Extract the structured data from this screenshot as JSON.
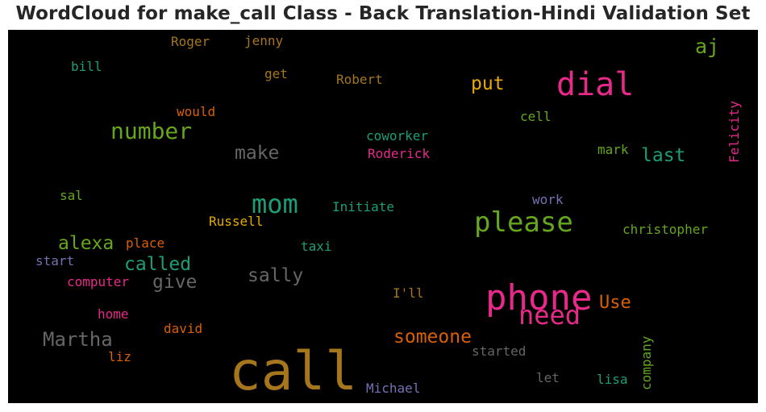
{
  "title": "WordCloud for make_call Class - Back Translation-Hindi Validation Set",
  "chart_data": {
    "type": "wordcloud",
    "title": "WordCloud for make_call Class - Back Translation-Hindi Validation Set",
    "background": "#000000",
    "colormap": "Dark2",
    "words": [
      {
        "text": "call",
        "color": "#a6761d"
      },
      {
        "text": "phone",
        "color": "#e7298a"
      },
      {
        "text": "dial",
        "color": "#e7298a"
      },
      {
        "text": "please",
        "color": "#66a61e"
      },
      {
        "text": "mom",
        "color": "#1b9e77"
      },
      {
        "text": "need",
        "color": "#e7298a"
      },
      {
        "text": "number",
        "color": "#66a61e"
      },
      {
        "text": "Martha",
        "color": "#666666"
      },
      {
        "text": "someone",
        "color": "#d95f02"
      },
      {
        "text": "alexa",
        "color": "#66a61e"
      },
      {
        "text": "called",
        "color": "#1b9e77"
      },
      {
        "text": "make",
        "color": "#666666"
      },
      {
        "text": "sally",
        "color": "#666666"
      },
      {
        "text": "give",
        "color": "#666666"
      },
      {
        "text": "put",
        "color": "#e6ab02"
      },
      {
        "text": "last",
        "color": "#1b9e77"
      },
      {
        "text": "Use",
        "color": "#d95f02"
      },
      {
        "text": "aj",
        "color": "#66a61e"
      },
      {
        "text": "Michael",
        "color": "#7570b3"
      },
      {
        "text": "Roderick",
        "color": "#e7298a"
      },
      {
        "text": "Robert",
        "color": "#a6761d"
      },
      {
        "text": "coworker",
        "color": "#1b9e77"
      },
      {
        "text": "Initiate",
        "color": "#1b9e77"
      },
      {
        "text": "Russell",
        "color": "#e6ab02"
      },
      {
        "text": "christopher",
        "color": "#66a61e"
      },
      {
        "text": "company",
        "color": "#66a61e"
      },
      {
        "text": "Felicity",
        "color": "#e7298a"
      },
      {
        "text": "started",
        "color": "#666666"
      },
      {
        "text": "computer",
        "color": "#e7298a"
      },
      {
        "text": "Roger",
        "color": "#a6761d"
      },
      {
        "text": "jenny",
        "color": "#a6761d"
      },
      {
        "text": "would",
        "color": "#d95f02"
      },
      {
        "text": "get",
        "color": "#a6761d"
      },
      {
        "text": "bill",
        "color": "#1b9e77"
      },
      {
        "text": "cell",
        "color": "#66a61e"
      },
      {
        "text": "mark",
        "color": "#66a61e"
      },
      {
        "text": "work",
        "color": "#7570b3"
      },
      {
        "text": "taxi",
        "color": "#1b9e77"
      },
      {
        "text": "place",
        "color": "#d95f02"
      },
      {
        "text": "start",
        "color": "#7570b3"
      },
      {
        "text": "home",
        "color": "#e7298a"
      },
      {
        "text": "david",
        "color": "#d95f02"
      },
      {
        "text": "liz",
        "color": "#d95f02"
      },
      {
        "text": "let",
        "color": "#666666"
      },
      {
        "text": "lisa",
        "color": "#1b9e77"
      },
      {
        "text": "I'll",
        "color": "#a6761d"
      },
      {
        "text": "sal",
        "color": "#66a61e"
      }
    ]
  }
}
